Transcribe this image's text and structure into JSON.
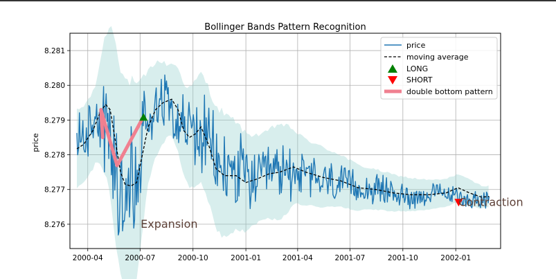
{
  "chart_data": {
    "type": "line",
    "title": "Bollinger Bands Pattern Recognition",
    "xlabel": "",
    "ylabel": "price",
    "grid": true,
    "legend_position": "top-right",
    "xlim": [
      "2000-03-01",
      "2002-03-20"
    ],
    "ylim": [
      8.2753,
      8.2815
    ],
    "x_ticks": [
      "2000-04",
      "2000-07",
      "2000-10",
      "2001-01",
      "2001-04",
      "2001-07",
      "2001-10",
      "2002-01"
    ],
    "y_ticks": [
      "8.276",
      "8.277",
      "8.278",
      "8.279",
      "8.280",
      "8.281"
    ],
    "colors": {
      "price": "#1f77b4",
      "moving_average": "#000000",
      "band": "#8fcfcb",
      "long": "#008000",
      "short": "#ff0000",
      "pattern": "#f08090",
      "annotation": "#5d4037"
    },
    "legend": [
      "price",
      "moving average",
      "LONG",
      "SHORT",
      "double bottom pattern"
    ],
    "price_anchors": [
      [
        "2000-03-13",
        8.2785
      ],
      [
        "2000-03-25",
        8.2785
      ],
      [
        "2000-04-05",
        8.2789
      ],
      [
        "2000-04-15",
        8.2793
      ],
      [
        "2000-04-25",
        8.279
      ],
      [
        "2000-05-05",
        8.2789
      ],
      [
        "2000-05-10",
        8.2785
      ],
      [
        "2000-05-20",
        8.2775
      ],
      [
        "2000-05-28",
        8.277
      ],
      [
        "2000-06-05",
        8.2772
      ],
      [
        "2000-06-15",
        8.277
      ],
      [
        "2000-06-25",
        8.2771
      ],
      [
        "2000-07-01",
        8.2775
      ],
      [
        "2000-07-06",
        8.2788
      ],
      [
        "2000-07-15",
        8.279
      ],
      [
        "2000-07-25",
        8.2794
      ],
      [
        "2000-08-05",
        8.2797
      ],
      [
        "2000-08-20",
        8.2796
      ],
      [
        "2000-09-01",
        8.2792
      ],
      [
        "2000-09-12",
        8.2789
      ],
      [
        "2000-09-22",
        8.2788
      ],
      [
        "2000-10-05",
        8.2786
      ],
      [
        "2000-10-20",
        8.2785
      ],
      [
        "2000-11-01",
        8.2782
      ],
      [
        "2000-11-15",
        8.2775
      ],
      [
        "2000-12-01",
        8.2776
      ],
      [
        "2001-01-01",
        8.2774
      ],
      [
        "2001-01-20",
        8.2772
      ],
      [
        "2001-02-10",
        8.2774
      ],
      [
        "2001-03-10",
        8.2775
      ],
      [
        "2001-04-01",
        8.2775
      ],
      [
        "2001-05-01",
        8.2773
      ],
      [
        "2001-06-01",
        8.2772
      ],
      [
        "2001-07-01",
        8.2771
      ],
      [
        "2001-08-01",
        8.277
      ],
      [
        "2001-09-01",
        8.277
      ],
      [
        "2001-10-01",
        8.2768
      ],
      [
        "2001-11-01",
        8.2768
      ],
      [
        "2001-12-01",
        8.2769
      ],
      [
        "2002-01-01",
        8.2768
      ],
      [
        "2002-02-01",
        8.2767
      ],
      [
        "2002-02-28",
        8.2767
      ]
    ],
    "moving_average": [
      [
        "2000-03-13",
        8.27817
      ],
      [
        "2000-03-25",
        8.2783
      ],
      [
        "2000-04-10",
        8.2787
      ],
      [
        "2000-04-22",
        8.2792
      ],
      [
        "2000-05-02",
        8.27945
      ],
      [
        "2000-05-10",
        8.2793
      ],
      [
        "2000-05-20",
        8.2783
      ],
      [
        "2000-05-28",
        8.2775
      ],
      [
        "2000-06-05",
        8.27715
      ],
      [
        "2000-06-15",
        8.2771
      ],
      [
        "2000-06-25",
        8.2772
      ],
      [
        "2000-07-05",
        8.278
      ],
      [
        "2000-07-15",
        8.2788
      ],
      [
        "2000-07-28",
        8.2793
      ],
      [
        "2000-08-10",
        8.2795
      ],
      [
        "2000-08-25",
        8.2796
      ],
      [
        "2000-09-05",
        8.2793
      ],
      [
        "2000-09-15",
        8.2787
      ],
      [
        "2000-09-25",
        8.2785
      ],
      [
        "2000-10-05",
        8.2786
      ],
      [
        "2000-10-15",
        8.2788
      ],
      [
        "2000-10-28",
        8.2783
      ],
      [
        "2000-11-10",
        8.2776
      ],
      [
        "2000-11-25",
        8.2774
      ],
      [
        "2000-12-15",
        8.2774
      ],
      [
        "2001-01-01",
        8.2772
      ],
      [
        "2001-01-20",
        8.2773
      ],
      [
        "2001-02-10",
        8.27745
      ],
      [
        "2001-03-01",
        8.2775
      ],
      [
        "2001-03-25",
        8.27765
      ],
      [
        "2001-04-15",
        8.2775
      ],
      [
        "2001-05-15",
        8.27735
      ],
      [
        "2001-06-15",
        8.27725
      ],
      [
        "2001-07-15",
        8.27705
      ],
      [
        "2001-08-15",
        8.277
      ],
      [
        "2001-09-15",
        8.2769
      ],
      [
        "2001-10-15",
        8.27685
      ],
      [
        "2001-11-15",
        8.27685
      ],
      [
        "2001-12-15",
        8.2769
      ],
      [
        "2002-01-05",
        8.27705
      ],
      [
        "2002-01-25",
        8.2769
      ],
      [
        "2002-02-15",
        8.27678
      ],
      [
        "2002-02-28",
        8.2768
      ]
    ],
    "band_width": [
      [
        "2000-03-13",
        0.0011
      ],
      [
        "2000-04-15",
        0.0011
      ],
      [
        "2000-05-20",
        0.003
      ],
      [
        "2000-06-20",
        0.003
      ],
      [
        "2000-07-15",
        0.0016
      ],
      [
        "2000-08-20",
        0.001
      ],
      [
        "2000-09-20",
        0.0014
      ],
      [
        "2000-10-20",
        0.0016
      ],
      [
        "2000-11-20",
        0.0018
      ],
      [
        "2001-01-01",
        0.0014
      ],
      [
        "2001-02-01",
        0.0012
      ],
      [
        "2001-03-01",
        0.0014
      ],
      [
        "2001-04-01",
        0.001
      ],
      [
        "2001-06-01",
        0.0008
      ],
      [
        "2001-08-01",
        0.0006
      ],
      [
        "2001-10-01",
        0.0005
      ],
      [
        "2001-12-01",
        0.0004
      ],
      [
        "2002-01-15",
        0.0004
      ],
      [
        "2002-02-28",
        0.0003
      ]
    ],
    "markers": [
      {
        "type": "LONG",
        "x": "2000-07-07",
        "y": 8.27908
      },
      {
        "type": "SHORT",
        "x": "2002-01-06",
        "y": 8.27663
      }
    ],
    "pattern": [
      [
        "2000-04-27",
        8.2785
      ],
      [
        "2000-04-24",
        8.2793
      ],
      [
        "2000-05-22",
        8.27769
      ],
      [
        "2000-07-07",
        8.2791
      ]
    ],
    "annotations": [
      {
        "text": "Expansion",
        "x": "2000-07-02",
        "y": 8.276
      },
      {
        "text": "Contraction",
        "x": "2002-01-06",
        "y": 8.27663
      }
    ]
  }
}
